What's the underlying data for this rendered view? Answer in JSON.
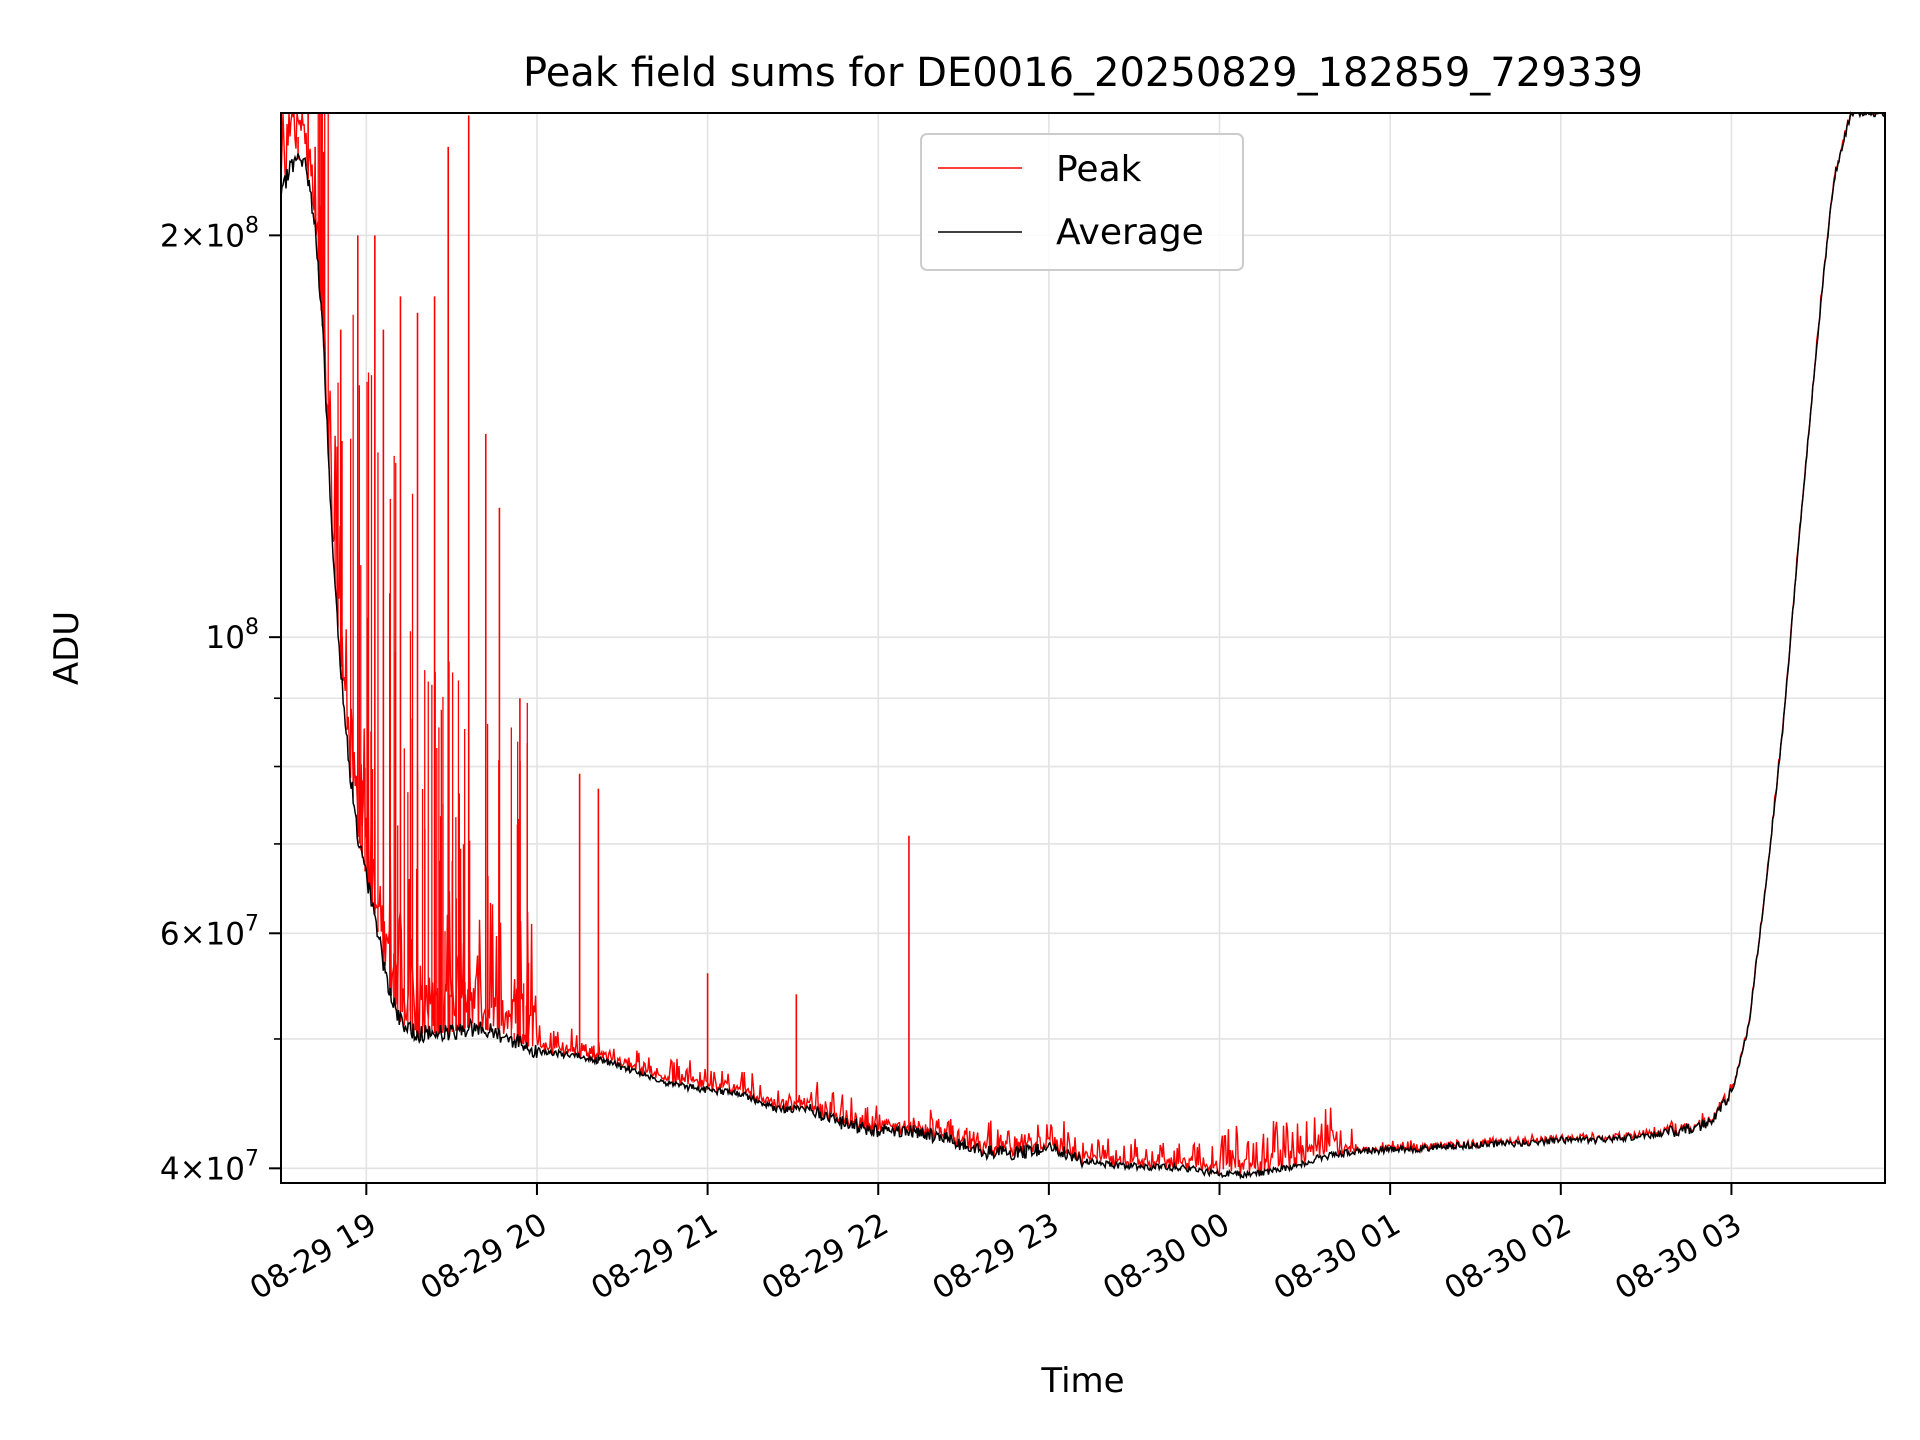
{
  "chart_data": {
    "type": "line",
    "title": "Peak field sums for DE0016_20250829_182859_729339",
    "xlabel": "Time",
    "ylabel": "ADU",
    "yscale": "log",
    "ylim": [
      39000000,
      247000000
    ],
    "xlim_hours": [
      -0.5,
      8.9
    ],
    "grid": true,
    "legend_position": "top-center",
    "x_tick_labels": [
      "08-29 19",
      "08-29 20",
      "08-29 21",
      "08-29 22",
      "08-29 23",
      "08-30 00",
      "08-30 01",
      "08-30 02",
      "08-30 03"
    ],
    "y_tick_major": [
      {
        "value": 40000000,
        "mantissa": "4",
        "exponent": "7"
      },
      {
        "value": 60000000,
        "mantissa": "6",
        "exponent": "7"
      },
      {
        "value": 100000000,
        "mantissa": "",
        "exponent": "8"
      },
      {
        "value": 200000000,
        "mantissa": "2",
        "exponent": "8"
      }
    ],
    "y_tick_minor": [
      50000000,
      70000000,
      80000000,
      90000000
    ],
    "series": [
      {
        "name": "Average",
        "color": "#000000",
        "x_hours": [
          -0.5,
          -0.45,
          -0.4,
          -0.35,
          -0.3,
          -0.25,
          -0.2,
          -0.15,
          -0.1,
          -0.05,
          0.0,
          0.05,
          0.1,
          0.15,
          0.2,
          0.25,
          0.3,
          0.4,
          0.5,
          0.6,
          0.7,
          0.8,
          0.9,
          1.0,
          1.2,
          1.4,
          1.6,
          1.8,
          2.0,
          2.2,
          2.4,
          2.5,
          2.6,
          2.8,
          3.0,
          3.2,
          3.4,
          3.6,
          3.8,
          4.0,
          4.2,
          4.4,
          4.6,
          4.8,
          5.0,
          5.2,
          5.4,
          5.6,
          5.8,
          6.0,
          6.2,
          6.4,
          6.6,
          6.8,
          7.0,
          7.2,
          7.4,
          7.6,
          7.8,
          7.9,
          8.0,
          8.1,
          8.2,
          8.3,
          8.4,
          8.5,
          8.55,
          8.6,
          8.7,
          8.8,
          8.9
        ],
        "values": [
          213000000,
          225000000,
          228000000,
          225000000,
          203000000,
          165000000,
          118000000,
          95000000,
          80000000,
          71000000,
          66000000,
          62000000,
          57000000,
          53500000,
          51500000,
          50800000,
          50500000,
          50500000,
          50600000,
          51000000,
          50800000,
          50300000,
          49700000,
          49000000,
          48600000,
          48100000,
          47200000,
          46200000,
          45800000,
          45500000,
          44300000,
          44300000,
          44300000,
          43200000,
          42700000,
          42700000,
          42100000,
          41200000,
          41000000,
          41500000,
          40500000,
          40200000,
          40100000,
          40000000,
          39600000,
          39600000,
          40000000,
          40800000,
          41200000,
          41300000,
          41400000,
          41600000,
          41700000,
          41800000,
          42000000,
          42000000,
          42200000,
          42500000,
          42900000,
          43700000,
          45500000,
          51000000,
          65000000,
          85000000,
          120000000,
          165000000,
          192000000,
          220000000,
          247000000,
          247000000,
          247000000
        ]
      },
      {
        "name": "Peak",
        "color": "#ff0000",
        "spikes": [
          {
            "x_hours": -0.4,
            "value": 237000000
          },
          {
            "x_hours": -0.3,
            "value": 233000000
          },
          {
            "x_hours": -0.25,
            "value": 231000000
          },
          {
            "x_hours": -0.15,
            "value": 170000000
          },
          {
            "x_hours": -0.05,
            "value": 200000000
          },
          {
            "x_hours": 0.05,
            "value": 200000000
          },
          {
            "x_hours": 0.1,
            "value": 170000000
          },
          {
            "x_hours": 0.2,
            "value": 180000000
          },
          {
            "x_hours": 0.3,
            "value": 175000000
          },
          {
            "x_hours": 0.4,
            "value": 180000000
          },
          {
            "x_hours": 0.48,
            "value": 233000000
          },
          {
            "x_hours": 0.6,
            "value": 246000000
          },
          {
            "x_hours": 0.7,
            "value": 142000000
          },
          {
            "x_hours": 0.78,
            "value": 125000000
          },
          {
            "x_hours": 0.9,
            "value": 90000000
          },
          {
            "x_hours": 0.95,
            "value": 57000000
          },
          {
            "x_hours": 1.25,
            "value": 79000000
          },
          {
            "x_hours": 1.36,
            "value": 77000000
          },
          {
            "x_hours": 2.0,
            "value": 56000000
          },
          {
            "x_hours": 2.52,
            "value": 54000000
          },
          {
            "x_hours": 3.18,
            "value": 71000000
          }
        ],
        "noise_ranges": [
          {
            "from_hours": -0.5,
            "to_hours": 1.0,
            "amplitude": 0.1
          },
          {
            "from_hours": 1.0,
            "to_hours": 5.8,
            "amplitude": 0.015
          },
          {
            "from_hours": 5.0,
            "to_hours": 5.7,
            "amplitude": 0.03
          },
          {
            "from_hours": 5.8,
            "to_hours": 8.9,
            "amplitude": 0.004
          }
        ]
      }
    ]
  }
}
